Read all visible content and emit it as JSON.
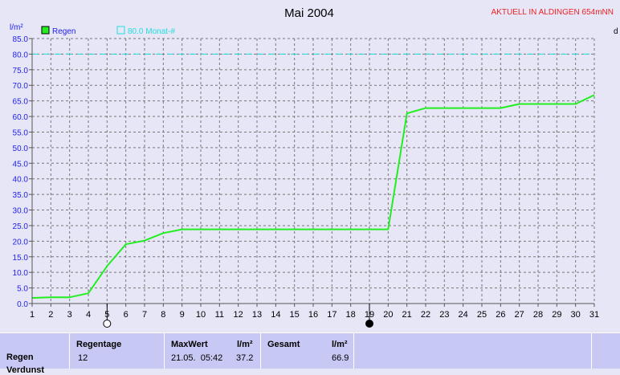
{
  "chart_data": {
    "type": "line",
    "title": "Mai 2004",
    "location_banner": "AKTUELL IN ALDINGEN 654mNN",
    "ylabel": "l/m²",
    "right_axis_label": "d",
    "ylim": [
      0,
      85
    ],
    "yticks": [
      "0.0",
      "5.0",
      "10.0",
      "15.0",
      "20.0",
      "25.0",
      "30.0",
      "35.0",
      "40.0",
      "45.0",
      "50.0",
      "55.0",
      "60.0",
      "65.0",
      "70.0",
      "75.0",
      "80.0",
      "85.0"
    ],
    "xlim": [
      1,
      31
    ],
    "categories": [
      "1",
      "2",
      "3",
      "4",
      "5",
      "6",
      "7",
      "8",
      "9",
      "10",
      "11",
      "12",
      "13",
      "14",
      "15",
      "16",
      "17",
      "18",
      "19",
      "20",
      "21",
      "22",
      "23",
      "24",
      "25",
      "26",
      "27",
      "28",
      "29",
      "30",
      "31"
    ],
    "grid": true,
    "legend_position": "top-left",
    "series": [
      {
        "name": "Regen",
        "color": "#22ee22",
        "x": [
          1,
          2,
          3,
          4,
          5,
          6,
          7,
          8,
          9,
          10,
          11,
          12,
          13,
          14,
          15,
          16,
          17,
          18,
          19,
          20,
          21,
          22,
          23,
          24,
          25,
          26,
          27,
          28,
          29,
          30,
          31
        ],
        "values": [
          1.8,
          2.0,
          2.0,
          3.3,
          12.0,
          19.0,
          20.2,
          22.6,
          23.8,
          23.8,
          23.8,
          23.8,
          23.8,
          23.8,
          23.8,
          23.8,
          23.8,
          23.8,
          23.8,
          23.8,
          61.0,
          62.7,
          62.7,
          62.7,
          62.7,
          62.7,
          64.0,
          64.0,
          64.0,
          64.0,
          66.9
        ]
      }
    ],
    "reference_line": {
      "name": "80.0 Monat-#",
      "value": 80.0,
      "color": "#22dddd"
    },
    "moon_markers": [
      {
        "day": 5,
        "phase": "full"
      },
      {
        "day": 19,
        "phase": "new"
      }
    ],
    "colors": {
      "background": "#e6e6f7",
      "grid": "#777777",
      "title": "#000000",
      "banner": "#ee2222",
      "axis_text": "#2222ee"
    }
  },
  "stats": {
    "row_label": "Regen",
    "next_row_label": "Verdunst",
    "regentage_label": "Regentage",
    "regentage_value": "12",
    "maxwert_label": "MaxWert",
    "maxwert_unit": "l/m²",
    "maxwert_datetime": "21.05.  05:42",
    "maxwert_value": "37.2",
    "gesamt_label": "Gesamt",
    "gesamt_unit": "l/m²",
    "gesamt_value": "66.9"
  }
}
